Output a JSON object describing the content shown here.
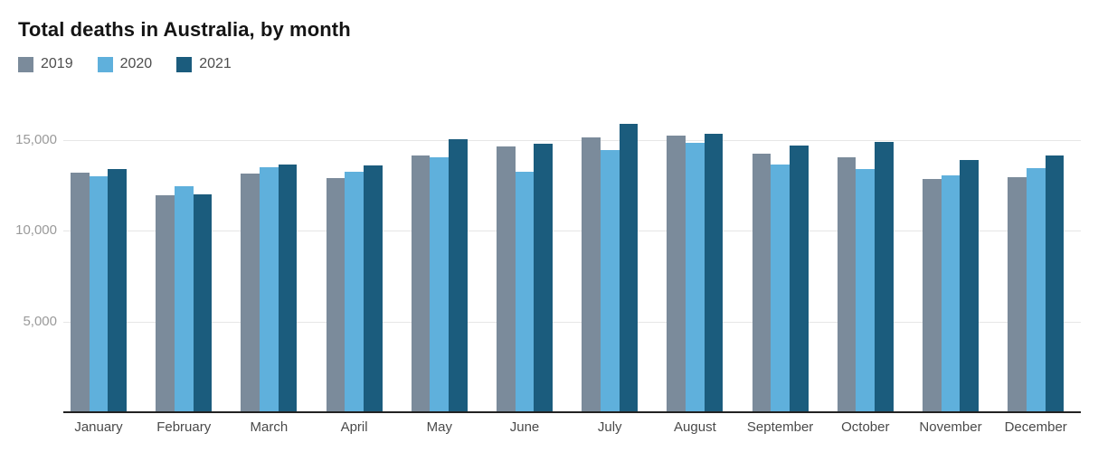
{
  "chart": {
    "title": "Total deaths in Australia, by month"
  },
  "chart_data": {
    "type": "bar",
    "title": "Total deaths in Australia, by month",
    "categories": [
      "January",
      "February",
      "March",
      "April",
      "May",
      "June",
      "July",
      "August",
      "September",
      "October",
      "November",
      "December"
    ],
    "series": [
      {
        "name": "2019",
        "color": "#7b8b9b",
        "values": [
          13200,
          11950,
          13150,
          12900,
          14150,
          14650,
          15150,
          15250,
          14250,
          14050,
          12850,
          12950
        ]
      },
      {
        "name": "2020",
        "color": "#5fb0dc",
        "values": [
          13000,
          12450,
          13500,
          13250,
          14050,
          13250,
          14450,
          14850,
          13650,
          13400,
          13050,
          13450
        ]
      },
      {
        "name": "2021",
        "color": "#1b5c7d",
        "values": [
          13400,
          12000,
          13650,
          13600,
          15050,
          14800,
          15900,
          15350,
          14700,
          14900,
          13900,
          14150
        ]
      }
    ],
    "xlabel": "",
    "ylabel": "",
    "ylim": [
      0,
      16250
    ],
    "yticks": [
      {
        "value": 5000,
        "label": "5,000"
      },
      {
        "value": 10000,
        "label": "10,000"
      },
      {
        "value": 15000,
        "label": "15,000"
      }
    ],
    "grid": "horizontal",
    "legend_position": "top-left",
    "background_color": "#ffffff",
    "axis_line_color": "#222222",
    "gridline_color": "#e6e6e6"
  }
}
